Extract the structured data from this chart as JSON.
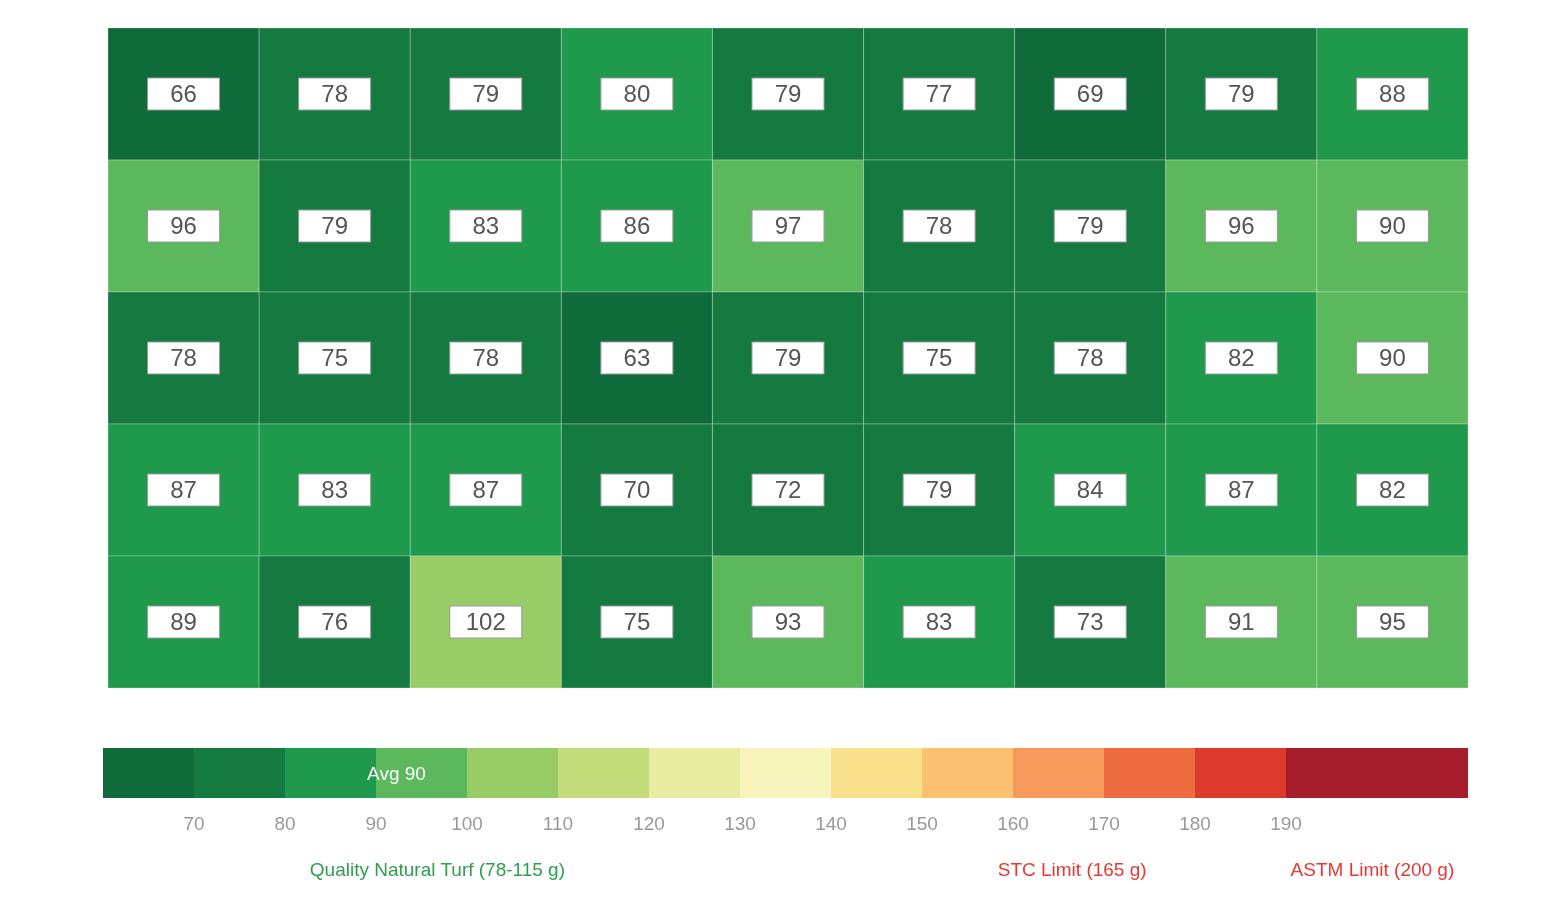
{
  "chart_data": {
    "type": "heatmap",
    "categories": [
      null,
      null,
      null,
      null,
      null,
      null,
      null,
      null,
      null
    ],
    "y_categories": [
      null,
      null,
      null,
      null,
      null
    ],
    "cells": [
      [
        66,
        78,
        79,
        80,
        79,
        77,
        69,
        79,
        88
      ],
      [
        96,
        79,
        83,
        86,
        97,
        78,
        79,
        96,
        90
      ],
      [
        78,
        75,
        78,
        63,
        79,
        75,
        78,
        82,
        90
      ],
      [
        87,
        83,
        87,
        70,
        72,
        79,
        84,
        87,
        82
      ],
      [
        89,
        76,
        102,
        75,
        93,
        83,
        73,
        91,
        95
      ]
    ],
    "data_labels": true,
    "clim": [
      60,
      210
    ],
    "cticks": [
      70,
      80,
      90,
      100,
      110,
      120,
      130,
      140,
      150,
      160,
      170,
      180,
      190
    ],
    "colors": [
      "#0f6b3a",
      "#157a40",
      "#1f9a4c",
      "#5cb85c",
      "#98cc66",
      "#c3dd7a",
      "#e8eca0",
      "#f8f5bc",
      "#f9e08a",
      "#fcc170",
      "#f59a5a",
      "#ee6a3f",
      "#dc3a2c",
      "#a61d2c",
      "#a61d2c"
    ],
    "annotations": [
      "Avg 90",
      "Quality Natural Turf (78-115 g)",
      "STC Limit (165 g)",
      "ASTM Limit (200 g)"
    ]
  }
}
